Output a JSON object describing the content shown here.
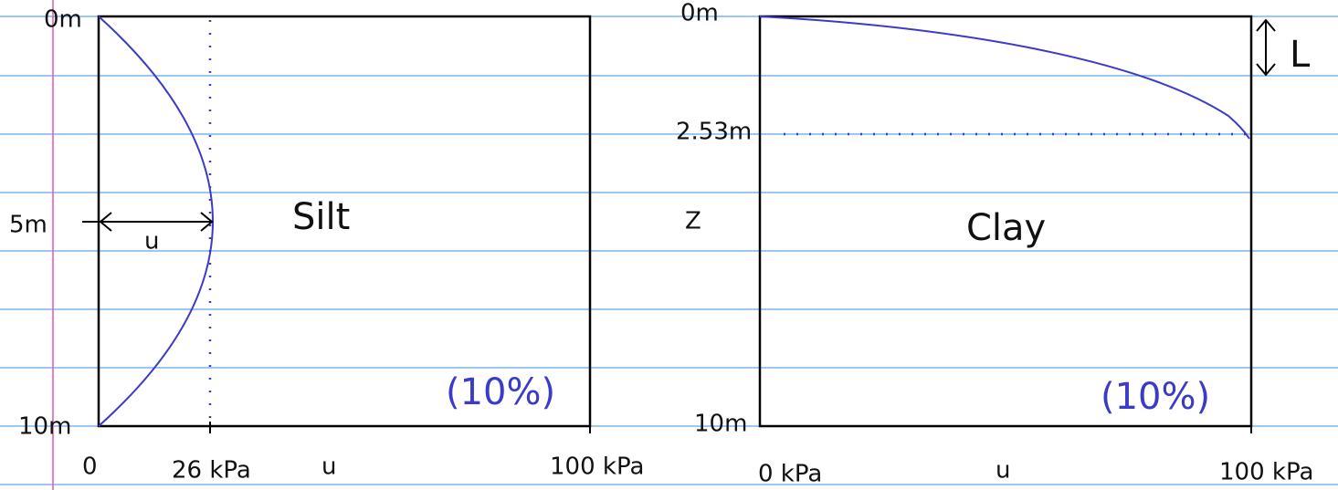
{
  "left_panel": {
    "depth_top": "0m",
    "depth_mid": "5m",
    "depth_bottom": "10m",
    "material": "Silt",
    "arrow_label": "u",
    "percent": "(10%)",
    "x_start": "0",
    "x_mid": "26 kPa",
    "x_axis": "u",
    "x_end": "100 kPa"
  },
  "right_panel": {
    "depth_top": "0m",
    "depth_marker": "2.53m",
    "depth_axis": "Z",
    "depth_bottom": "10m",
    "material": "Clay",
    "percent": "(10%)",
    "x_start": "0 kPa",
    "x_axis": "u",
    "x_end": "100 kPa",
    "arrow_label": "L"
  }
}
